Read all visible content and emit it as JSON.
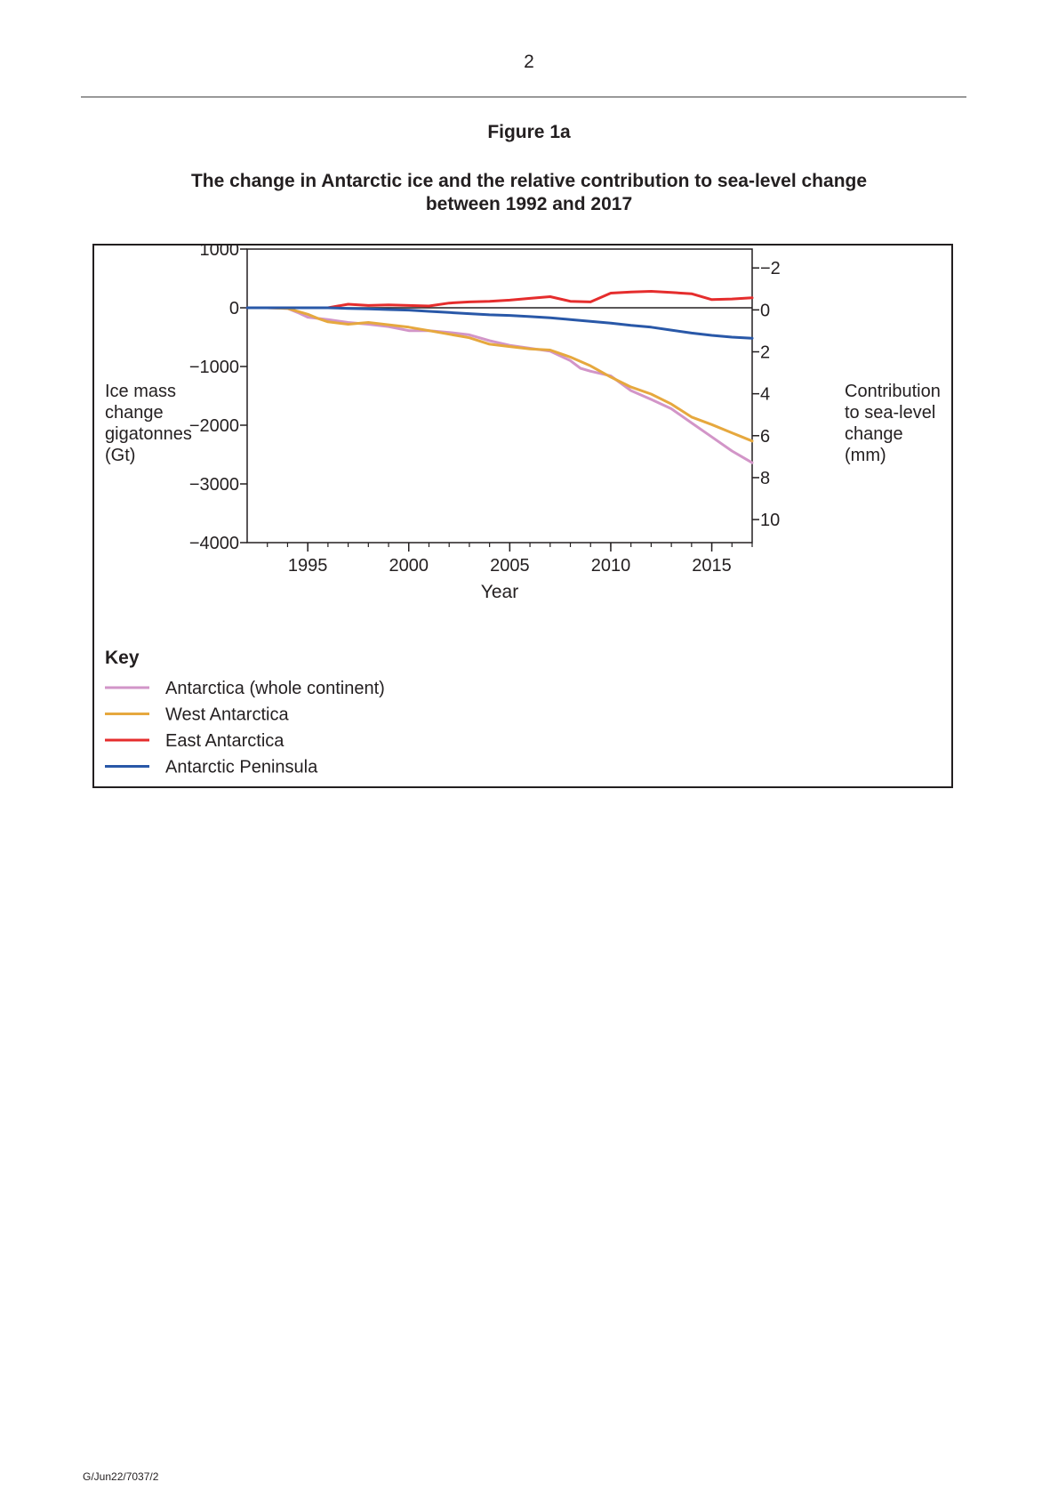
{
  "page": {
    "page_number": "2",
    "figure_label": "Figure 1a",
    "figure_title_lines": [
      "The change in Antarctic ice and the relative contribution to sea-level change",
      "between 1992 and 2017"
    ],
    "footer_code": "G/Jun22/7037/2"
  },
  "chart_data": {
    "type": "line",
    "title": "The change in Antarctic ice and the relative contribution to sea-level change between 1992 and 2017",
    "xlabel": "Year",
    "ylabel_lines": [
      "Ice mass",
      "change",
      "gigatonnes",
      "(Gt)"
    ],
    "y2label_lines": [
      "Contribution",
      "to sea-level",
      "change",
      "(mm)"
    ],
    "xlim": [
      1992,
      2017
    ],
    "ylim": [
      -4000,
      1000
    ],
    "y2lim": [
      -2.9,
      11.1
    ],
    "x_ticks": [
      1995,
      2000,
      2005,
      2010,
      2015
    ],
    "x_tick_labels": [
      "1995",
      "2000",
      "2005",
      "2010",
      "2015"
    ],
    "y_ticks": [
      1000,
      0,
      -1000,
      -2000,
      -3000,
      -4000
    ],
    "y_tick_labels": [
      "1000",
      "0",
      "−1000",
      "−2000",
      "−3000",
      "−4000"
    ],
    "y2_ticks": [
      -2,
      0,
      2,
      4,
      6,
      8,
      10
    ],
    "y2_tick_labels": [
      "−2",
      "0",
      "2",
      "4",
      "6",
      "8",
      "10"
    ],
    "grid": false,
    "legend_title": "Key",
    "legend_position": "bottom-left",
    "series": [
      {
        "name": "Antarctica (whole continent)",
        "color": "#d295c8",
        "x": [
          1992,
          1993,
          1994,
          1994.5,
          1995,
          1996,
          1997,
          1998,
          1999,
          2000,
          2001,
          2002,
          2003,
          2004,
          2005,
          2006,
          2007,
          2008,
          2008.5,
          2009,
          2010,
          2011,
          2012,
          2013,
          2014,
          2015,
          2016,
          2016.5,
          2017
        ],
        "values": [
          0,
          0,
          -10,
          -80,
          -160,
          -200,
          -250,
          -280,
          -320,
          -390,
          -390,
          -420,
          -460,
          -560,
          -640,
          -690,
          -740,
          -900,
          -1030,
          -1080,
          -1160,
          -1410,
          -1560,
          -1720,
          -1960,
          -2200,
          -2440,
          -2540,
          -2640
        ]
      },
      {
        "name": "West Antarctica",
        "color": "#e6a83e",
        "x": [
          1992,
          1993,
          1994,
          1995,
          1995.5,
          1996,
          1997,
          1998,
          1999,
          2000,
          2001,
          2002,
          2003,
          2004,
          2005,
          2006,
          2007,
          2008,
          2009,
          2010,
          2011,
          2012,
          2013,
          2014,
          2015,
          2016,
          2016.5,
          2017
        ],
        "values": [
          0,
          0,
          -10,
          -110,
          -180,
          -240,
          -280,
          -250,
          -290,
          -330,
          -390,
          -450,
          -510,
          -620,
          -660,
          -700,
          -720,
          -840,
          -990,
          -1180,
          -1350,
          -1470,
          -1640,
          -1860,
          -1990,
          -2130,
          -2200,
          -2270
        ]
      },
      {
        "name": "East Antarctica",
        "color": "#e52d2d",
        "x": [
          1992,
          1993,
          1994,
          1995,
          1996,
          1997,
          1998,
          1999,
          2000,
          2001,
          2002,
          2003,
          2004,
          2005,
          2006,
          2007,
          2008,
          2009,
          2010,
          2011,
          2012,
          2013,
          2014,
          2015,
          2016,
          2017
        ],
        "values": [
          0,
          0,
          0,
          0,
          0,
          60,
          40,
          50,
          40,
          30,
          80,
          100,
          110,
          130,
          160,
          190,
          110,
          100,
          250,
          270,
          280,
          260,
          240,
          140,
          150,
          170
        ]
      },
      {
        "name": "Antarctic Peninsula",
        "color": "#2958a8",
        "x": [
          1992,
          1993,
          1994,
          1995,
          1996,
          1997,
          1998,
          1999,
          2000,
          2001,
          2002,
          2003,
          2004,
          2005,
          2006,
          2007,
          2008,
          2009,
          2010,
          2011,
          2012,
          2013,
          2014,
          2015,
          2016,
          2017
        ],
        "values": [
          0,
          0,
          0,
          0,
          0,
          -10,
          -20,
          -30,
          -40,
          -60,
          -80,
          -100,
          -120,
          -130,
          -150,
          -170,
          -200,
          -230,
          -260,
          -300,
          -330,
          -380,
          -430,
          -470,
          -500,
          -520
        ]
      }
    ]
  }
}
